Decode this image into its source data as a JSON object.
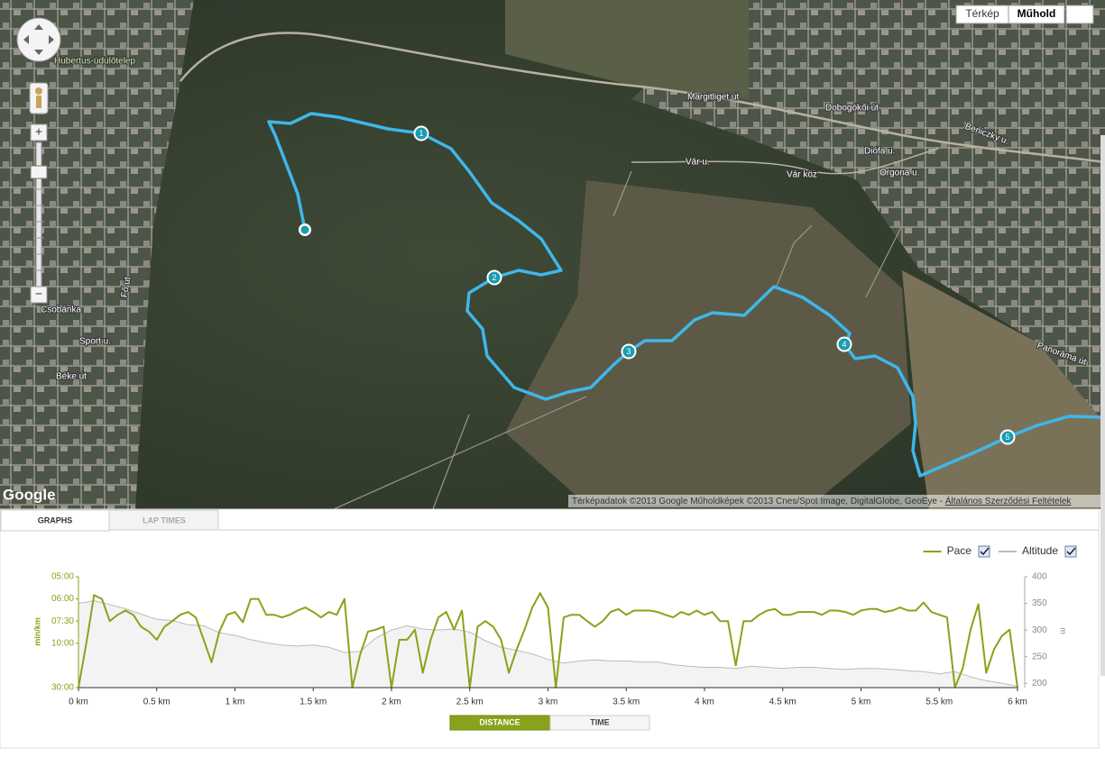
{
  "map": {
    "map_type_buttons": [
      "Térkép",
      "Műhold"
    ],
    "zoom_in": "+",
    "zoom_out": "−",
    "logo": "Google",
    "attribution": "Térképadatok ©2013 Google Műholdképek ©2013 Cnes/Spot Image, DigitalGlobe, GeoEye - ",
    "terms": "Általános Szerződési Feltételek",
    "places": [
      "Hubertus-üdülőtelep",
      "Csobánka",
      "Margitliget út",
      "Beniczky u.",
      "Vár u.",
      "Dobogókői út",
      "Orgona u.",
      "Diófa u.",
      "Panoráma út",
      "Sport u.",
      "Béke út",
      "Fő út",
      "Vár köz"
    ],
    "markers": [
      "1",
      "2",
      "3",
      "4",
      "5"
    ]
  },
  "tabs": [
    "GRAPHS",
    "LAP TIMES"
  ],
  "toggle": [
    "DISTANCE",
    "TIME"
  ],
  "chart_data": {
    "type": "line",
    "legend": "top-right",
    "y_label": "min/km",
    "y2_label": "m",
    "yscale": "reciprocal",
    "xlim": [
      0,
      6
    ],
    "xticks": [
      {
        "value": 0,
        "label": "0 km"
      },
      {
        "value": 0.5,
        "label": "0.5 km"
      },
      {
        "value": 1,
        "label": "1 km"
      },
      {
        "value": 1.5,
        "label": "1.5 km"
      },
      {
        "value": 2,
        "label": "2 km"
      },
      {
        "value": 2.5,
        "label": "2.5 km"
      },
      {
        "value": 3,
        "label": "3 km"
      },
      {
        "value": 3.5,
        "label": "3.5 km"
      },
      {
        "value": 4,
        "label": "4 km"
      },
      {
        "value": 4.5,
        "label": "4.5 km"
      },
      {
        "value": 5,
        "label": "5 km"
      },
      {
        "value": 5.5,
        "label": "5.5 km"
      },
      {
        "value": 6,
        "label": "6 km"
      }
    ],
    "ylim": [
      5,
      30
    ],
    "yticks": [
      {
        "value": 5,
        "label": "05:00"
      },
      {
        "value": 6,
        "label": "06:00"
      },
      {
        "value": 7.5,
        "label": "07:30"
      },
      {
        "value": 10,
        "label": "10:00"
      },
      {
        "value": 30,
        "label": "30:00"
      }
    ],
    "y2lim": [
      192,
      400
    ],
    "y2ticks": [
      200,
      250,
      300,
      350,
      400
    ],
    "x": [
      0,
      0.05,
      0.1,
      0.15,
      0.2,
      0.25,
      0.3,
      0.35,
      0.4,
      0.45,
      0.5,
      0.55,
      0.6,
      0.65,
      0.7,
      0.75,
      0.8,
      0.85,
      0.9,
      0.95,
      1,
      1.05,
      1.1,
      1.15,
      1.2,
      1.25,
      1.3,
      1.35,
      1.4,
      1.45,
      1.5,
      1.55,
      1.6,
      1.65,
      1.7,
      1.75,
      1.8,
      1.85,
      1.9,
      1.95,
      2,
      2.05,
      2.1,
      2.15,
      2.2,
      2.25,
      2.3,
      2.35,
      2.4,
      2.45,
      2.5,
      2.55,
      2.6,
      2.65,
      2.7,
      2.75,
      2.8,
      2.85,
      2.9,
      2.95,
      3,
      3.05,
      3.1,
      3.15,
      3.2,
      3.25,
      3.3,
      3.35,
      3.4,
      3.45,
      3.5,
      3.55,
      3.6,
      3.65,
      3.7,
      3.75,
      3.8,
      3.85,
      3.9,
      3.95,
      4,
      4.05,
      4.1,
      4.15,
      4.2,
      4.25,
      4.3,
      4.35,
      4.4,
      4.45,
      4.5,
      4.55,
      4.6,
      4.65,
      4.7,
      4.75,
      4.8,
      4.85,
      4.9,
      4.95,
      5,
      5.05,
      5.1,
      5.15,
      5.2,
      5.25,
      5.3,
      5.35,
      5.4,
      5.45,
      5.5,
      5.55,
      5.6,
      5.65,
      5.7,
      5.75,
      5.8,
      5.85,
      5.9,
      5.95,
      6
    ],
    "series": [
      {
        "name": "Pace",
        "color": "#88a31a",
        "values": [
          30,
          10,
          5.8,
          6,
          7.5,
          7,
          6.7,
          7,
          8,
          8.5,
          9.5,
          8,
          7.5,
          7,
          6.8,
          7.2,
          9.5,
          14,
          8.5,
          7,
          6.8,
          7.6,
          6,
          6,
          7,
          7,
          7.2,
          7,
          6.7,
          6.5,
          6.8,
          7.2,
          6.8,
          7,
          6,
          30,
          12,
          8.5,
          8.3,
          8,
          30,
          9.5,
          9.5,
          8.3,
          18,
          9.5,
          7.2,
          6.8,
          8.3,
          6.7,
          30,
          8,
          7.5,
          8,
          9.5,
          18,
          11,
          8.3,
          6.5,
          5.7,
          6.5,
          30,
          7.2,
          7,
          7,
          7.5,
          8,
          7.5,
          6.8,
          6.6,
          7,
          6.7,
          6.7,
          6.7,
          6.8,
          7,
          7.2,
          6.8,
          7,
          6.7,
          7,
          6.8,
          7.5,
          7.5,
          15,
          7.5,
          7.5,
          7,
          6.7,
          6.6,
          7,
          7,
          6.8,
          6.8,
          6.8,
          7,
          6.7,
          6.7,
          6.8,
          7,
          6.7,
          6.6,
          6.6,
          6.8,
          6.7,
          6.5,
          6.7,
          6.7,
          6.2,
          6.8,
          7,
          7.2,
          30,
          16,
          8.3,
          6.3,
          18,
          11,
          9,
          8.3,
          30
        ]
      },
      {
        "name": "Altitude",
        "color": "#bbbbbb",
        "axis": "y2",
        "x": [
          0,
          0.1,
          0.2,
          0.3,
          0.4,
          0.5,
          0.6,
          0.7,
          0.8,
          0.9,
          1,
          1.1,
          1.2,
          1.3,
          1.4,
          1.5,
          1.6,
          1.7,
          1.8,
          1.9,
          2,
          2.1,
          2.2,
          2.3,
          2.4,
          2.5,
          2.6,
          2.7,
          2.8,
          2.9,
          3,
          3.1,
          3.2,
          3.3,
          3.4,
          3.5,
          3.6,
          3.7,
          3.8,
          3.9,
          4,
          4.1,
          4.2,
          4.3,
          4.4,
          4.5,
          4.6,
          4.7,
          4.8,
          4.9,
          5,
          5.1,
          5.2,
          5.3,
          5.4,
          5.5,
          5.6,
          5.7,
          5.8,
          5.9,
          6
        ],
        "values": [
          350,
          355,
          348,
          340,
          330,
          320,
          318,
          310,
          308,
          295,
          290,
          282,
          276,
          272,
          270,
          272,
          268,
          258,
          260,
          285,
          300,
          308,
          302,
          300,
          302,
          296,
          280,
          268,
          262,
          255,
          245,
          238,
          242,
          244,
          242,
          242,
          240,
          240,
          235,
          232,
          230,
          230,
          228,
          232,
          230,
          228,
          230,
          230,
          228,
          226,
          228,
          228,
          226,
          224,
          222,
          218,
          222,
          212,
          205,
          200,
          195
        ]
      }
    ]
  }
}
